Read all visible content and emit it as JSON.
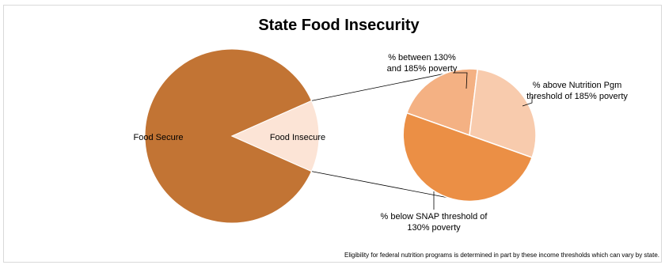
{
  "chart_data": {
    "type": "pie",
    "title": "State Food Insecurity",
    "primary": {
      "slices": [
        {
          "label": "Food Secure",
          "value": 86.7,
          "color": "#c27434"
        },
        {
          "label": "Food Insecure",
          "value": 13.3,
          "color": "#fce4d6"
        }
      ]
    },
    "breakdown": {
      "of": "Food Insecure",
      "slices": [
        {
          "label": "% between 130% and 185% poverty",
          "lines": [
            "% between 130%",
            "and 185% poverty"
          ],
          "value": 21.5,
          "color": "#f4b183"
        },
        {
          "label": "% above Nutrition Pgm threshold of 185% poverty",
          "lines": [
            "% above Nutrition Pgm",
            "threshold of 185% poverty"
          ],
          "value": 28.5,
          "color": "#f8cbad"
        },
        {
          "label": "% below SNAP threshold of 130% poverty",
          "lines": [
            "% below SNAP threshold of",
            "130% poverty"
          ],
          "value": 50.0,
          "color": "#eb8f45"
        }
      ]
    },
    "footnote": "Eligibility for federal nutrition programs is determined in part by these income thresholds which can vary by state."
  }
}
